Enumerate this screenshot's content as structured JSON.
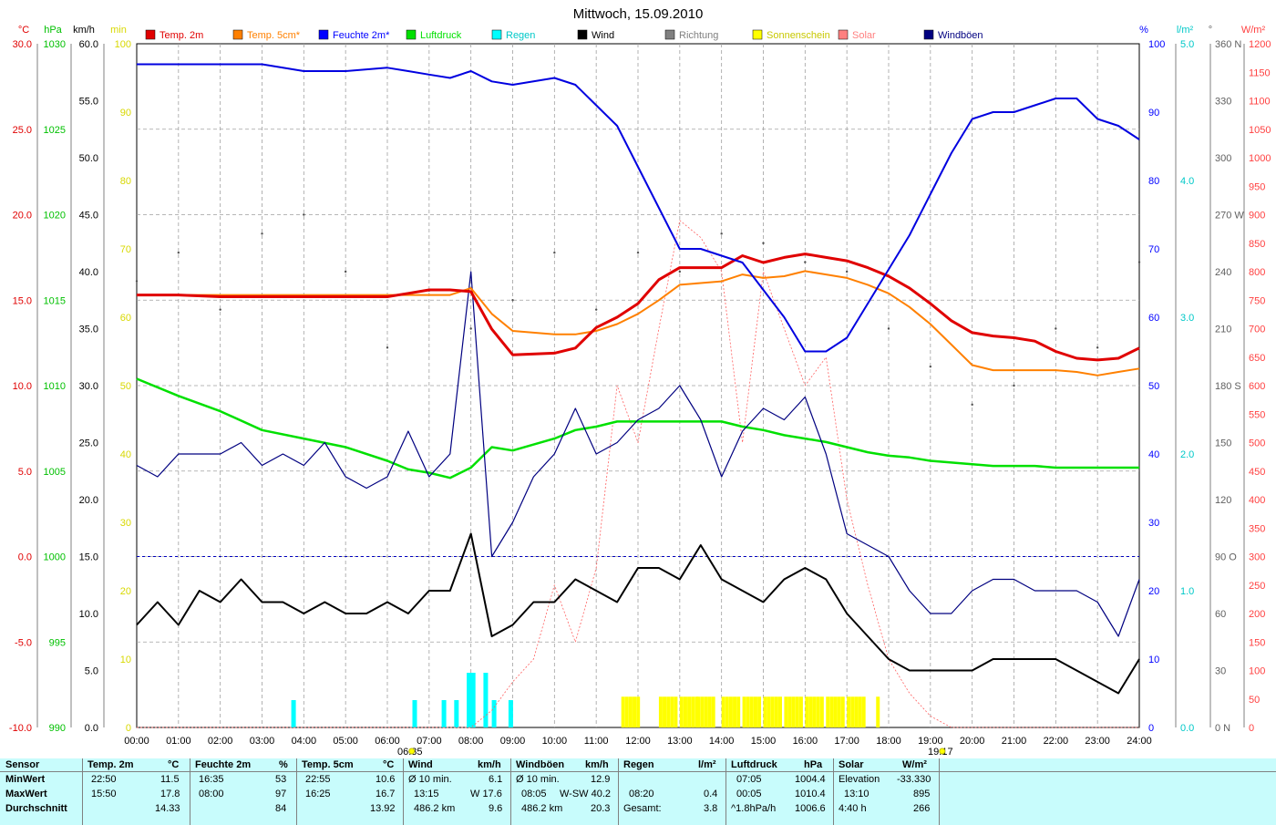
{
  "chart_data": {
    "type": "line",
    "title": "Mittwoch, 15.09.2010",
    "x_ticks": [
      "00:00",
      "01:00",
      "02:00",
      "03:00",
      "04:00",
      "05:00",
      "06:00",
      "07:00",
      "08:00",
      "09:00",
      "10:00",
      "11:00",
      "12:00",
      "13:00",
      "14:00",
      "15:00",
      "16:00",
      "17:00",
      "18:00",
      "19:00",
      "20:00",
      "21:00",
      "22:00",
      "23:00",
      "24:00"
    ],
    "sunrise": "06:35",
    "sunset": "19:17",
    "grid": true,
    "axes": [
      {
        "unit": "°C",
        "color": "#e00000",
        "ticks": [
          "30.0",
          "25.0",
          "20.0",
          "15.0",
          "10.0",
          "5.0",
          "0.0",
          "-5.0",
          "-10.0"
        ],
        "range": [
          -10,
          30
        ]
      },
      {
        "unit": "hPa",
        "color": "#00c000",
        "ticks": [
          "1030",
          "1025",
          "1020",
          "1015",
          "1010",
          "1005",
          "1000",
          "995",
          "990"
        ],
        "range": [
          990,
          1030
        ]
      },
      {
        "unit": "km/h",
        "color": "#000000",
        "ticks": [
          "60.0",
          "55.0",
          "50.0",
          "45.0",
          "40.0",
          "35.0",
          "30.0",
          "25.0",
          "20.0",
          "15.0",
          "10.0",
          "5.0",
          "0.0"
        ],
        "range": [
          0,
          60
        ]
      },
      {
        "unit": "min",
        "color": "#e0e000",
        "ticks": [
          "100",
          "90",
          "80",
          "70",
          "60",
          "50",
          "40",
          "30",
          "20",
          "10",
          "0"
        ],
        "range": [
          0,
          100
        ]
      },
      {
        "unit": "%",
        "color": "#0000ff",
        "ticks": [
          "100",
          "90",
          "80",
          "70",
          "60",
          "50",
          "40",
          "30",
          "20",
          "10",
          "0"
        ],
        "range": [
          0,
          100
        ]
      },
      {
        "unit": "l/m²",
        "color": "#00e0e0",
        "ticks": [
          "5.0",
          "4.0",
          "3.0",
          "2.0",
          "1.0",
          "0.0"
        ],
        "range": [
          0,
          5
        ]
      },
      {
        "unit": "°",
        "color": "#606060",
        "ticks": [
          "360 N",
          "330",
          "300",
          "270 W",
          "240",
          "210",
          "180 S",
          "150",
          "120",
          "90 O",
          "60",
          "30",
          "0 N"
        ],
        "range": [
          0,
          360
        ]
      },
      {
        "unit": "W/m²",
        "color": "#ff4040",
        "ticks": [
          "1200",
          "1150",
          "1100",
          "1050",
          "1000",
          "950",
          "900",
          "850",
          "800",
          "750",
          "700",
          "650",
          "600",
          "550",
          "500",
          "450",
          "400",
          "350",
          "300",
          "250",
          "200",
          "150",
          "100",
          "50",
          "0"
        ],
        "range": [
          0,
          1200
        ]
      }
    ],
    "legend": [
      {
        "name": "Temp. 2m",
        "color": "#e00000"
      },
      {
        "name": "Temp. 5cm*",
        "color": "#ff8000"
      },
      {
        "name": "Feuchte 2m*",
        "color": "#0000ff"
      },
      {
        "name": "Luftdruck",
        "color": "#00e000"
      },
      {
        "name": "Regen",
        "color": "#00ffff"
      },
      {
        "name": "Wind",
        "color": "#000000"
      },
      {
        "name": "Richtung",
        "color": "#808080"
      },
      {
        "name": "Sonnenschein",
        "color": "#ffff00"
      },
      {
        "name": "Solar",
        "color": "#ff8080"
      },
      {
        "name": "Windböen",
        "color": "#000080"
      }
    ],
    "series": [
      {
        "name": "Temp. 2m",
        "axis": 0,
        "x": [
          0,
          1,
          2,
          3,
          4,
          5,
          6,
          6.5,
          7,
          7.5,
          8,
          8.5,
          9,
          10,
          10.5,
          11,
          11.5,
          12,
          12.5,
          13,
          13.5,
          14,
          14.5,
          15,
          15.5,
          16,
          16.5,
          17,
          17.5,
          18,
          18.5,
          19,
          19.5,
          20,
          20.5,
          21,
          21.5,
          22,
          22.5,
          23,
          23.5,
          24
        ],
        "y": [
          15.3,
          15.3,
          15.2,
          15.2,
          15.2,
          15.2,
          15.2,
          15.4,
          15.6,
          15.6,
          15.5,
          13.3,
          11.8,
          11.9,
          12.2,
          13.4,
          14,
          14.8,
          16.2,
          16.9,
          16.9,
          16.9,
          17.6,
          17.2,
          17.5,
          17.7,
          17.5,
          17.3,
          16.9,
          16.4,
          15.7,
          14.8,
          13.8,
          13.1,
          12.9,
          12.8,
          12.6,
          12,
          11.6,
          11.5,
          11.6,
          12.2
        ]
      },
      {
        "name": "Temp. 5cm*",
        "axis": 0,
        "x": [
          0,
          1,
          2,
          3,
          4,
          5,
          6,
          6.5,
          7,
          7.5,
          8,
          8.5,
          9,
          10,
          10.5,
          11,
          11.5,
          12,
          12.5,
          13,
          13.5,
          14,
          14.5,
          15,
          15.5,
          16,
          16.5,
          17,
          17.5,
          18,
          18.5,
          19,
          19.5,
          20,
          20.5,
          21,
          21.5,
          22,
          22.5,
          23,
          23.5,
          24
        ],
        "y": [
          15.3,
          15.3,
          15.3,
          15.3,
          15.3,
          15.3,
          15.3,
          15.3,
          15.3,
          15.3,
          15.7,
          14.2,
          13.2,
          13.0,
          13.0,
          13.2,
          13.6,
          14.2,
          15.0,
          15.9,
          16.0,
          16.1,
          16.5,
          16.3,
          16.4,
          16.7,
          16.5,
          16.3,
          15.9,
          15.4,
          14.6,
          13.6,
          12.4,
          11.2,
          10.9,
          10.9,
          10.9,
          10.9,
          10.8,
          10.6,
          10.8,
          11.0
        ]
      },
      {
        "name": "Feuchte 2m*",
        "axis": 4,
        "x": [
          0,
          1,
          2,
          3,
          4,
          5,
          6,
          6.5,
          7,
          7.5,
          8,
          8.5,
          9,
          10,
          10.5,
          11,
          11.5,
          12,
          12.5,
          13,
          13.5,
          14,
          14.5,
          15,
          15.5,
          16,
          16.5,
          17,
          17.5,
          18,
          18.5,
          19,
          19.5,
          20,
          20.5,
          21,
          21.5,
          22,
          22.5,
          23,
          23.5,
          24
        ],
        "y": [
          97,
          97,
          97,
          97,
          96,
          96,
          96.5,
          96,
          95.5,
          95,
          96,
          94.5,
          94,
          95,
          94,
          91,
          88,
          82,
          76,
          70,
          70,
          69,
          68,
          64,
          60,
          55,
          55,
          57,
          62,
          67,
          72,
          78,
          84,
          89,
          90,
          90,
          91,
          92,
          92,
          89,
          88,
          86
        ]
      },
      {
        "name": "Luftdruck",
        "axis": 1,
        "x": [
          0,
          1,
          2,
          3,
          4,
          5,
          6,
          6.5,
          7,
          7.5,
          8,
          8.5,
          9,
          10,
          10.5,
          11,
          11.5,
          12,
          12.5,
          13,
          13.5,
          14,
          14.5,
          15,
          15.5,
          16,
          16.5,
          17,
          17.5,
          18,
          18.5,
          19,
          19.5,
          20,
          20.5,
          21,
          21.5,
          22,
          22.5,
          23,
          23.5,
          24
        ],
        "y": [
          1010.4,
          1009.4,
          1008.5,
          1007.4,
          1006.9,
          1006.4,
          1005.6,
          1005.1,
          1004.9,
          1004.6,
          1005.2,
          1006.4,
          1006.2,
          1006.9,
          1007.4,
          1007.6,
          1007.9,
          1007.9,
          1007.9,
          1007.9,
          1007.9,
          1007.9,
          1007.6,
          1007.4,
          1007.1,
          1006.9,
          1006.7,
          1006.4,
          1006.1,
          1005.9,
          1005.8,
          1005.6,
          1005.5,
          1005.4,
          1005.3,
          1005.3,
          1005.3,
          1005.2,
          1005.2,
          1005.2,
          1005.2,
          1005.2
        ]
      },
      {
        "name": "Wind",
        "axis": 2,
        "x": [
          0,
          0.5,
          1,
          1.5,
          2,
          2.5,
          3,
          3.5,
          4,
          4.5,
          5,
          5.5,
          6,
          6.5,
          7,
          7.5,
          8,
          8.5,
          9,
          9.5,
          10,
          10.5,
          11,
          11.5,
          12,
          12.5,
          13,
          13.5,
          14,
          14.5,
          15,
          15.5,
          16,
          16.5,
          17,
          17.5,
          18,
          18.5,
          19,
          19.5,
          20,
          20.5,
          21,
          21.5,
          22,
          22.5,
          23,
          23.5,
          24
        ],
        "y": [
          9,
          11,
          9,
          12,
          11,
          13,
          11,
          11,
          10,
          11,
          10,
          10,
          11,
          10,
          12,
          12,
          17,
          8,
          9,
          11,
          11,
          13,
          12,
          11,
          14,
          14,
          13,
          16,
          13,
          12,
          11,
          13,
          14,
          13,
          10,
          8,
          6,
          5,
          5,
          5,
          5,
          6,
          6,
          6,
          6,
          5,
          4,
          3,
          6
        ]
      },
      {
        "name": "Windböen",
        "axis": 2,
        "x": [
          0,
          0.5,
          1,
          1.5,
          2,
          2.5,
          3,
          3.5,
          4,
          4.5,
          5,
          5.5,
          6,
          6.5,
          7,
          7.5,
          8,
          8.5,
          9,
          9.5,
          10,
          10.5,
          11,
          11.5,
          12,
          12.5,
          13,
          13.5,
          14,
          14.5,
          15,
          15.5,
          16,
          16.5,
          17,
          17.5,
          18,
          18.5,
          19,
          19.5,
          20,
          20.5,
          21,
          21.5,
          22,
          22.5,
          23,
          23.5,
          24
        ],
        "y": [
          23,
          22,
          24,
          24,
          24,
          25,
          23,
          24,
          23,
          25,
          22,
          21,
          22,
          26,
          22,
          24,
          40,
          15,
          18,
          22,
          24,
          28,
          24,
          25,
          27,
          28,
          30,
          27,
          22,
          26,
          28,
          27,
          29,
          24,
          17,
          16,
          15,
          12,
          10,
          10,
          12,
          13,
          13,
          12,
          12,
          12,
          11,
          8,
          13
        ]
      },
      {
        "name": "Richtung",
        "axis": 6,
        "x": [
          0,
          1,
          2,
          3,
          4,
          5,
          6,
          7,
          8,
          9,
          10,
          11,
          12,
          13,
          14,
          15,
          16,
          17,
          18,
          19,
          20,
          21,
          22,
          23,
          24
        ],
        "y": [
          235,
          250,
          220,
          260,
          270,
          240,
          200,
          230,
          210,
          225,
          250,
          220,
          250,
          240,
          260,
          255,
          245,
          240,
          210,
          190,
          170,
          180,
          210,
          200,
          245
        ]
      },
      {
        "name": "Solar",
        "axis": 7,
        "x": [
          0,
          6,
          7,
          8,
          8.5,
          9,
          9.5,
          10,
          10.5,
          11,
          11.5,
          12,
          12.5,
          13,
          13.5,
          14,
          14.5,
          15,
          15.5,
          16,
          16.5,
          17,
          17.5,
          18,
          18.5,
          19,
          19.5,
          24
        ],
        "y": [
          0,
          0,
          0,
          0,
          30,
          80,
          120,
          250,
          150,
          280,
          600,
          500,
          700,
          890,
          860,
          800,
          500,
          800,
          700,
          600,
          650,
          400,
          250,
          120,
          60,
          20,
          0,
          0
        ]
      },
      {
        "name": "Sonnenschein",
        "axis": 3,
        "x": [
          11.6,
          12.5,
          13,
          13.4,
          14,
          14.5,
          15,
          15.5,
          16,
          16.5,
          17,
          17.7
        ],
        "y": [
          4.5,
          4.5,
          4.5,
          4.5,
          4.5,
          4.5,
          4.5,
          4.5,
          4.5,
          4.5,
          4.5,
          4.5
        ]
      },
      {
        "name": "Regen",
        "axis": 5,
        "x": [
          3.7,
          6.6,
          7.3,
          7.6,
          7.9,
          8.0,
          8.3,
          8.5,
          8.9
        ],
        "y": [
          0.2,
          0.2,
          0.2,
          0.2,
          0.4,
          0.4,
          0.4,
          0.2,
          0.2
        ]
      }
    ]
  },
  "stats": {
    "sensor": {
      "label": "Sensor",
      "min": "MinWert",
      "max": "MaxWert",
      "avg": "Durchschnitt"
    },
    "temp2m": {
      "label": "Temp. 2m",
      "unit": "°C",
      "min_t": "22:50",
      "min_v": "11.5",
      "max_t": "15:50",
      "max_v": "17.8",
      "avg": "14.33"
    },
    "feuchte": {
      "label": "Feuchte 2m",
      "unit": "%",
      "min_t": "16:35",
      "min_v": "53",
      "max_t": "08:00",
      "max_v": "97",
      "avg": "84"
    },
    "temp5cm": {
      "label": "Temp. 5cm",
      "unit": "°C",
      "min_t": "22:55",
      "min_v": "10.6",
      "max_t": "16:25",
      "max_v": "16.7",
      "avg": "13.92"
    },
    "wind": {
      "label": "Wind",
      "unit": "km/h",
      "min_t": "Ø 10 min.",
      "min_v": "6.1",
      "max_t": "13:15",
      "max_v": "W 17.6",
      "avg_t": "486.2 km",
      "avg": "9.6"
    },
    "boeen": {
      "label": "Windböen",
      "unit": "km/h",
      "min_t": "Ø 10 min.",
      "min_v": "12.9",
      "max_t": "08:05",
      "max_v": "W-SW 40.2",
      "avg_t": "486.2 km",
      "avg": "20.3"
    },
    "regen": {
      "label": "Regen",
      "unit": "l/m²",
      "max_t": "08:20",
      "max_v": "0.4",
      "avg_t": "Gesamt:",
      "avg": "3.8"
    },
    "luftdruck": {
      "label": "Luftdruck",
      "unit": "hPa",
      "min_t": "07:05",
      "min_v": "1004.4",
      "max_t": "00:05",
      "max_v": "1010.4",
      "avg_t": "^1.8hPa/h",
      "avg": "1006.6"
    },
    "solar": {
      "label": "Solar",
      "unit": "W/m²",
      "min_t": "Elevation",
      "min_v": "-33.330",
      "max_t": "13:10",
      "max_v": "895",
      "avg_t": "4:40 h",
      "avg": "266"
    }
  }
}
